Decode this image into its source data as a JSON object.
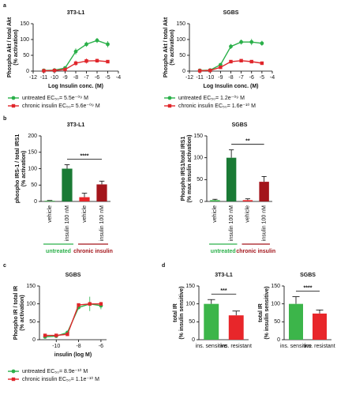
{
  "panel_labels": [
    "a",
    "b",
    "c",
    "d"
  ],
  "chart_data": [
    {
      "type": "line",
      "title": "3T3-L1",
      "x_label": "Log Insulin conc. (M)",
      "y_label": [
        "Phospho Akt / total Akt",
        "(% activation)"
      ],
      "xlim": [
        -12,
        -4
      ],
      "xticks": [
        -12,
        -11,
        -10,
        -9,
        -8,
        -7,
        -6,
        -5,
        -4
      ],
      "ylim": [
        0,
        150
      ],
      "yticks": [
        0,
        50,
        100,
        150
      ],
      "series": [
        {
          "name": "untreated EC₅₀= 5.5e⁻⁰⁹ M",
          "color": "#2bb04a",
          "marker": "circle",
          "x": [
            -11,
            -10,
            -9,
            -8,
            -7,
            -6,
            -5
          ],
          "values": [
            2,
            3,
            10,
            62,
            85,
            97,
            85
          ],
          "errors": [
            2,
            2,
            5,
            10,
            8,
            8,
            10
          ]
        },
        {
          "name": "chronic insulin EC₅₀= 5.6e⁻⁰⁹ M",
          "color": "#e0262b",
          "marker": "square",
          "x": [
            -11,
            -10,
            -9,
            -8,
            -7,
            -6,
            -5
          ],
          "values": [
            1,
            2,
            5,
            25,
            32,
            33,
            30
          ],
          "errors": [
            2,
            2,
            3,
            8,
            8,
            6,
            5
          ]
        }
      ]
    },
    {
      "type": "line",
      "title": "SGBS",
      "x_label": "Log Insulin conc. (M)",
      "y_label": [
        "Phospho Akt / total Akt",
        "(% activation)"
      ],
      "xlim": [
        -12,
        -4
      ],
      "xticks": [
        -12,
        -11,
        -10,
        -9,
        -8,
        -7,
        -6,
        -5,
        -4
      ],
      "ylim": [
        0,
        150
      ],
      "yticks": [
        0,
        50,
        100,
        150
      ],
      "series": [
        {
          "name": "untreated EC₅₀= 1.2e⁻⁰⁹ M",
          "color": "#2bb04a",
          "marker": "circle",
          "x": [
            -11,
            -10,
            -9,
            -8,
            -7,
            -6,
            -5
          ],
          "values": [
            2,
            3,
            20,
            78,
            92,
            92,
            88
          ],
          "errors": [
            2,
            2,
            6,
            8,
            8,
            10,
            8
          ]
        },
        {
          "name": "chronic insulin EC₅₀= 1.6e⁻¹⁰ M",
          "color": "#e0262b",
          "marker": "square",
          "x": [
            -11,
            -10,
            -9,
            -8,
            -7,
            -6,
            -5
          ],
          "values": [
            1,
            2,
            12,
            30,
            33,
            30,
            25
          ],
          "errors": [
            1,
            2,
            4,
            5,
            4,
            4,
            3
          ]
        }
      ]
    },
    {
      "type": "bar",
      "title": "3T3-L1",
      "y_label": [
        "phospho IRS-1 / total IRS1",
        "(% activation)"
      ],
      "ylim": [
        0,
        200
      ],
      "yticks": [
        0,
        50,
        100,
        150,
        200
      ],
      "categories": [
        "vehicle",
        "insulin 100 nM",
        "vehicle",
        "insulin 100 nM"
      ],
      "values": [
        2,
        100,
        13,
        52
      ],
      "errors": [
        1,
        12,
        12,
        10
      ],
      "colors": [
        "#3cb54a",
        "#1a7a35",
        "#e8262a",
        "#a3151b"
      ],
      "significance": "****",
      "groups": [
        "untreated",
        "chronic insulin"
      ],
      "group_colors": [
        "#2bb04a",
        "#a3151b"
      ]
    },
    {
      "type": "bar",
      "title": "SGBS",
      "y_label": [
        "Phospho IRS1/total IRS1",
        "(% max insulin activation)"
      ],
      "ylim": [
        0,
        150
      ],
      "yticks": [
        0,
        50,
        100,
        150
      ],
      "categories": [
        "vehicle",
        "insulin 100 nM",
        "vehicle",
        "insulin 100 nM"
      ],
      "values": [
        3,
        100,
        3,
        45
      ],
      "errors": [
        2,
        18,
        3,
        12
      ],
      "colors": [
        "#3cb54a",
        "#1a7a35",
        "#e8262a",
        "#a3151b"
      ],
      "significance": "**",
      "groups": [
        "untreated",
        "chronic insulin"
      ],
      "group_colors": [
        "#2bb04a",
        "#a3151b"
      ]
    },
    {
      "type": "line",
      "title": "SGBS",
      "x_label": "insulin (log M)",
      "y_label": [
        "Phospho IR / total IR",
        "(% activation)"
      ],
      "xlim": [
        -11.5,
        -5.5
      ],
      "xticks": [
        -10,
        -8,
        -6
      ],
      "ylim": [
        0,
        150
      ],
      "yticks": [
        0,
        50,
        100,
        150
      ],
      "series": [
        {
          "name": "untreated EC₅₀= 8.9e⁻¹⁰ M",
          "color": "#2bb04a",
          "marker": "circle",
          "x": [
            -11,
            -10,
            -9,
            -8,
            -7,
            -6
          ],
          "values": [
            8,
            10,
            20,
            90,
            100,
            95
          ],
          "errors": [
            3,
            3,
            5,
            5,
            20,
            10
          ]
        },
        {
          "name": "chronic insulin EC₅₀= 1.1e⁻¹⁰ M",
          "color": "#e0262b",
          "marker": "square",
          "x": [
            -11,
            -10,
            -9,
            -8,
            -7,
            -6
          ],
          "values": [
            12,
            12,
            15,
            97,
            100,
            100
          ],
          "errors": [
            3,
            3,
            4,
            4,
            5,
            5
          ]
        }
      ]
    },
    {
      "type": "bar",
      "title": "3T3-L1",
      "y_label": [
        "total IR",
        "(% insulin sensitive)"
      ],
      "ylim": [
        0,
        150
      ],
      "yticks": [
        0,
        50,
        100,
        150
      ],
      "categories": [
        "ins. sensitive",
        "ins. resistant"
      ],
      "values": [
        100,
        68
      ],
      "errors": [
        12,
        12
      ],
      "colors": [
        "#3cb54a",
        "#e8262a"
      ],
      "significance": "***"
    },
    {
      "type": "bar",
      "title": "SGBS",
      "y_label": [
        "total IR",
        "(% insulin sensitive)"
      ],
      "ylim": [
        0,
        150
      ],
      "yticks": [
        0,
        50,
        100,
        150
      ],
      "categories": [
        "ins. sensitive",
        "ins. resistant"
      ],
      "values": [
        100,
        73
      ],
      "errors": [
        20,
        10
      ],
      "colors": [
        "#3cb54a",
        "#e8262a"
      ],
      "significance": "****"
    }
  ]
}
